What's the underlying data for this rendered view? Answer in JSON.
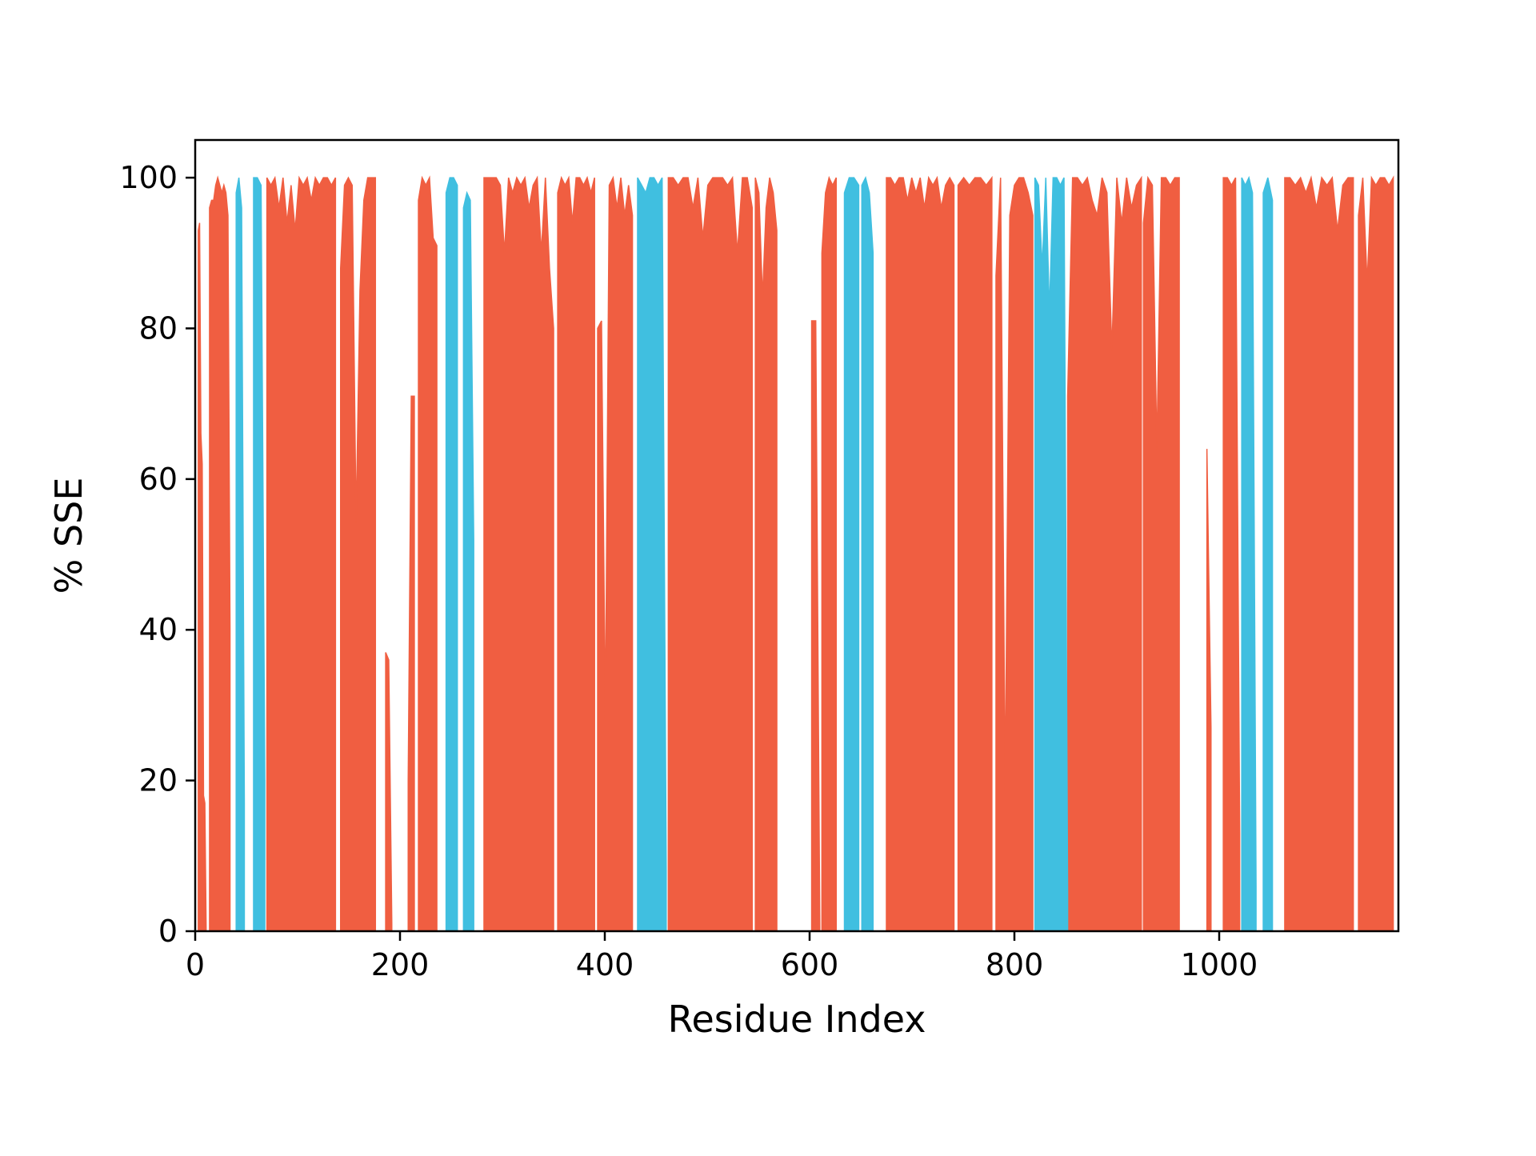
{
  "chart_data": {
    "type": "area",
    "title": "",
    "xlabel": "Residue Index",
    "ylabel": "% SSE",
    "xlim": [
      0,
      1175
    ],
    "ylim": [
      0,
      105
    ],
    "x_ticks": [
      0,
      200,
      400,
      600,
      800,
      1000
    ],
    "y_ticks": [
      0,
      20,
      40,
      60,
      80,
      100
    ],
    "grid": false,
    "legend": "none",
    "series": [
      {
        "color": "#f05e41",
        "segments": [
          [
            3,
            12,
            [
              93,
              94,
              66,
              62,
              18,
              17,
              0,
              0
            ]
          ],
          [
            14,
            34,
            [
              96,
              97,
              97,
              99,
              100,
              99,
              98,
              99,
              98,
              95,
              40
            ]
          ],
          [
            70,
            137,
            [
              100,
              99,
              100,
              96,
              100,
              94,
              99,
              93,
              100,
              99,
              100,
              97,
              100,
              99,
              100,
              100,
              99,
              100
            ]
          ],
          [
            142,
            176,
            [
              88,
              99,
              100,
              99,
              54,
              85,
              97,
              100,
              100,
              100
            ]
          ],
          [
            186,
            192,
            [
              37,
              36,
              1
            ]
          ],
          [
            208,
            214,
            [
              20,
              71,
              71
            ]
          ],
          [
            218,
            236,
            [
              97,
              100,
              99,
              100,
              92,
              91
            ]
          ],
          [
            282,
            350,
            [
              100,
              100,
              100,
              100,
              99,
              90,
              100,
              98,
              100,
              99,
              100,
              96,
              99,
              100,
              90,
              100,
              88,
              80
            ]
          ],
          [
            354,
            390,
            [
              98,
              100,
              99,
              100,
              94,
              100,
              100,
              99,
              100,
              98,
              100
            ]
          ],
          [
            393,
            427,
            [
              80,
              81,
              28,
              99,
              100,
              96,
              100,
              95,
              99,
              95
            ]
          ],
          [
            462,
            544,
            [
              100,
              100,
              99,
              100,
              100,
              96,
              100,
              92,
              99,
              100,
              100,
              100,
              99,
              100,
              90,
              100,
              100,
              96
            ]
          ],
          [
            547,
            568,
            [
              100,
              98,
              84,
              96,
              100,
              98,
              93
            ]
          ],
          [
            602,
            610,
            [
              81,
              81,
              0
            ]
          ],
          [
            612,
            626,
            [
              90,
              98,
              100,
              99,
              100
            ]
          ],
          [
            675,
            741,
            [
              100,
              100,
              99,
              100,
              100,
              97,
              100,
              98,
              100,
              96,
              100,
              99,
              100,
              96,
              99,
              100,
              99
            ]
          ],
          [
            745,
            778,
            [
              99,
              100,
              99,
              100,
              100,
              99,
              100
            ]
          ],
          [
            782,
            818,
            [
              87,
              100,
              18,
              95,
              99,
              100,
              100,
              98,
              95
            ]
          ],
          [
            852,
            924,
            [
              71,
              100,
              100,
              99,
              100,
              97,
              95,
              100,
              98,
              77,
              100,
              94,
              100,
              96,
              99,
              100
            ]
          ],
          [
            926,
            961,
            [
              94,
              100,
              99,
              64,
              100,
              100,
              99,
              100,
              100
            ]
          ],
          [
            988,
            992,
            [
              64,
              27
            ]
          ],
          [
            1004,
            1020,
            [
              100,
              100,
              99,
              100,
              13
            ]
          ],
          [
            1064,
            1131,
            [
              100,
              100,
              99,
              100,
              98,
              100,
              96,
              100,
              99,
              100,
              93,
              99,
              100,
              100
            ]
          ],
          [
            1136,
            1170,
            [
              95,
              100,
              86,
              100,
              99,
              100,
              100,
              99,
              100
            ]
          ]
        ]
      },
      {
        "color": "#40bfe0",
        "segments": [
          [
            40,
            48,
            [
              98,
              100,
              96,
              17
            ]
          ],
          [
            57,
            68,
            [
              100,
              100,
              99,
              20
            ]
          ],
          [
            245,
            256,
            [
              98,
              100,
              100,
              99
            ]
          ],
          [
            262,
            272,
            [
              96,
              98,
              97,
              52
            ]
          ],
          [
            432,
            460,
            [
              100,
              99,
              98,
              100,
              100,
              99,
              100,
              8
            ]
          ],
          [
            634,
            648,
            [
              98,
              100,
              100,
              99
            ]
          ],
          [
            651,
            662,
            [
              99,
              100,
              98,
              90
            ]
          ],
          [
            820,
            852,
            [
              100,
              99,
              88,
              100,
              82,
              100,
              100,
              99,
              100,
              5
            ]
          ],
          [
            1022,
            1036,
            [
              100,
              99,
              100,
              98,
              6
            ]
          ],
          [
            1043,
            1052,
            [
              98,
              100,
              97
            ]
          ]
        ]
      }
    ]
  }
}
